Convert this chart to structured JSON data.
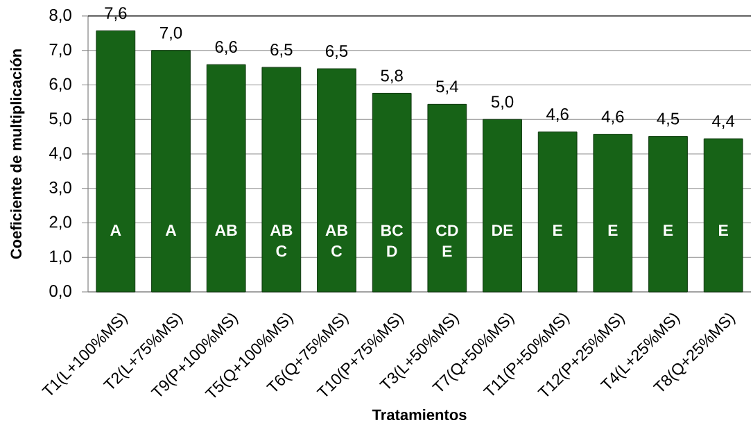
{
  "chart_data": {
    "type": "bar",
    "xlabel": "Tratamientos",
    "ylabel": "Coeficiente de multiplicación",
    "categories": [
      "T1(L+100%MS)",
      "T2(L+75%MS)",
      "T9(P+100%MS)",
      "T5(Q+100%MS)",
      "T6(Q+75%MS)",
      "T10(P+75%MS)",
      "T3(L+50%MS)",
      "T7(Q+50%MS)",
      "T11(P+50%MS)",
      "T12(P+25%MS)",
      "T4(L+25%MS)",
      "T8(Q+25%MS)"
    ],
    "values": [
      7.57,
      7.0,
      6.59,
      6.51,
      6.47,
      5.76,
      5.44,
      5.0,
      4.64,
      4.57,
      4.51,
      4.44
    ],
    "value_labels": [
      "7,6",
      "7,0",
      "6,6",
      "6,5",
      "6,5",
      "5,8",
      "5,4",
      "5,0",
      "4,6",
      "4,6",
      "4,5",
      "4,4"
    ],
    "color": "#176317",
    "ylim": [
      0,
      8
    ],
    "yticks": [
      {
        "value": 0,
        "label": "0,0"
      },
      {
        "value": 1,
        "label": "1,0"
      },
      {
        "value": 2,
        "label": "2,0"
      },
      {
        "value": 3,
        "label": "3,0"
      },
      {
        "value": 4,
        "label": "4,0"
      },
      {
        "value": 5,
        "label": "5,0"
      },
      {
        "value": 6,
        "label": "6,0"
      },
      {
        "value": 7,
        "label": "7,0"
      },
      {
        "value": 8,
        "label": "8,0"
      }
    ],
    "grid": "y",
    "annotations": [
      "A",
      "A",
      "AB",
      "AB C",
      "AB C",
      "BC D",
      "CD E",
      "DE",
      "E",
      "E",
      "E",
      "E"
    ]
  }
}
